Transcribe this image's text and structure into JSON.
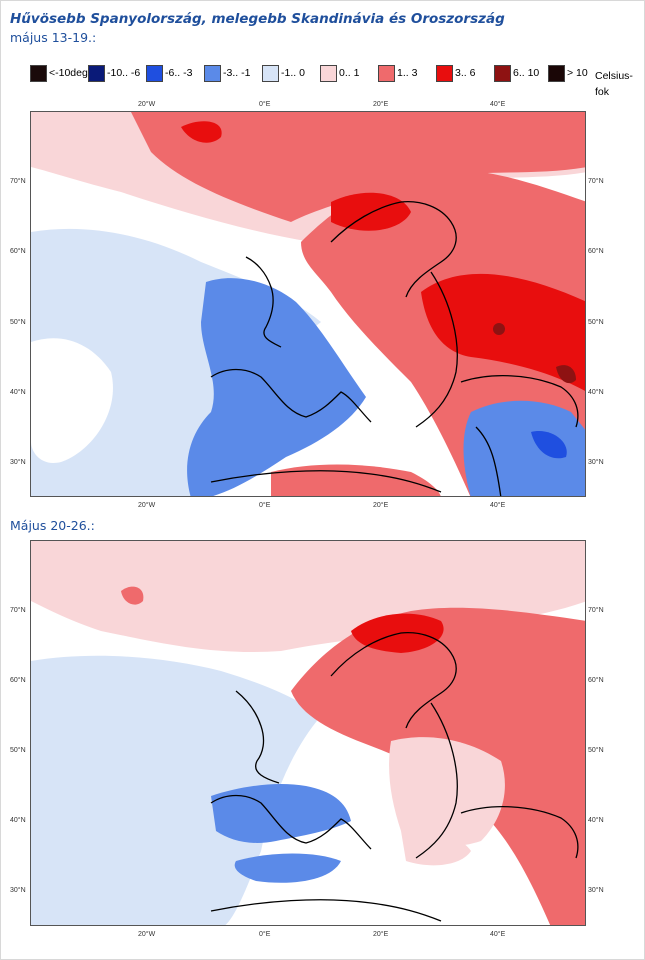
{
  "title": "Hűvösebb Spanyolország, melegebb Skandinávia és Oroszország",
  "legend": {
    "unit": "Celsius-fok",
    "items": [
      {
        "label": "<-10deg",
        "color": "#1a0a0a"
      },
      {
        "label": "-10.. -6",
        "color": "#0a1a78"
      },
      {
        "label": "-6.. -3",
        "color": "#1f4fe0"
      },
      {
        "label": "-3.. -1",
        "color": "#5b8ae8"
      },
      {
        "label": "-1.. 0",
        "color": "#d7e4f7"
      },
      {
        "label": "0.. 1",
        "color": "#f9d6d8"
      },
      {
        "label": "1.. 3",
        "color": "#ef6a6c"
      },
      {
        "label": "3.. 6",
        "color": "#e80e0e"
      },
      {
        "label": "6.. 10",
        "color": "#8e1212"
      },
      {
        "label": "> 10",
        "color": "#1a0606"
      }
    ]
  },
  "axes": {
    "lon_ticks": [
      "20°W",
      "0°E",
      "20°E",
      "40°E"
    ],
    "lat_ticks": [
      "70°N",
      "60°N",
      "50°N",
      "40°N",
      "30°N"
    ]
  },
  "maps": [
    {
      "subtitle": "május 13-19.:"
    },
    {
      "subtitle": "Május 20-26.:"
    }
  ]
}
